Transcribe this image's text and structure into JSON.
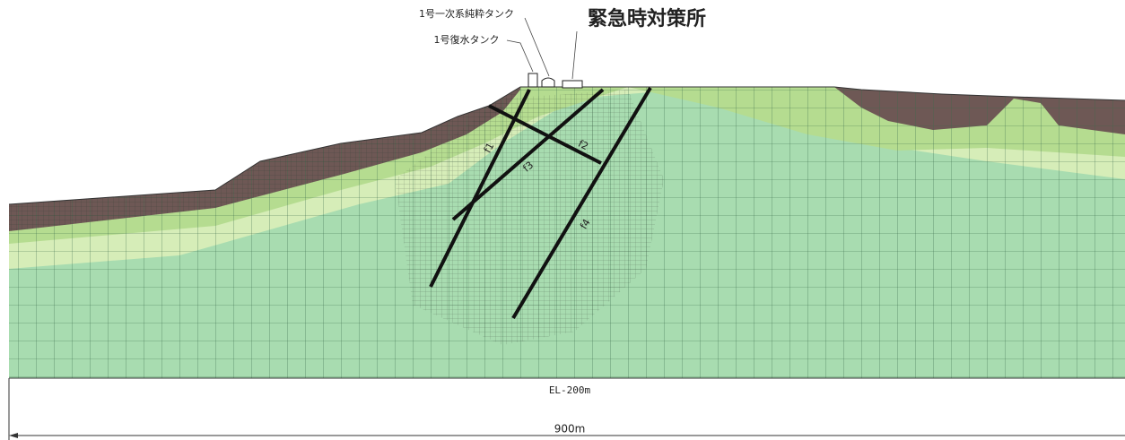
{
  "header": {
    "title": "緊急時対策所"
  },
  "facilities": [
    "1号一次系純粋タンク",
    "1号復水タンク"
  ],
  "faults": [
    "f1",
    "f2",
    "f3",
    "f4"
  ],
  "bottom": {
    "elevation": "EL-200m",
    "width": "900m"
  }
}
